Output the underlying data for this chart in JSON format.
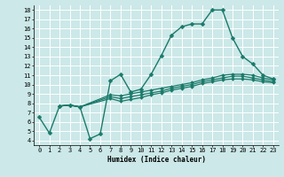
{
  "xlabel": "Humidex (Indice chaleur)",
  "bg_color": "#cce8e8",
  "grid_color": "#ffffff",
  "line_color": "#1a7a6a",
  "xlim": [
    -0.5,
    23.5
  ],
  "ylim": [
    3.5,
    18.5
  ],
  "xticks": [
    0,
    1,
    2,
    3,
    4,
    5,
    6,
    7,
    8,
    9,
    10,
    11,
    12,
    13,
    14,
    15,
    16,
    17,
    18,
    19,
    20,
    21,
    22,
    23
  ],
  "yticks": [
    4,
    5,
    6,
    7,
    8,
    9,
    10,
    11,
    12,
    13,
    14,
    15,
    16,
    17,
    18
  ],
  "series": [
    {
      "x": [
        0,
        1,
        2,
        3,
        4,
        5,
        6,
        7,
        8,
        9,
        10,
        11,
        12,
        13,
        14,
        15,
        16,
        17,
        18,
        19,
        20,
        21,
        22,
        23
      ],
      "y": [
        6.5,
        4.8,
        7.7,
        7.8,
        7.6,
        4.2,
        4.7,
        10.4,
        11.1,
        9.2,
        9.5,
        11.1,
        13.1,
        15.3,
        16.2,
        16.5,
        16.5,
        18.0,
        18.0,
        15.0,
        13.0,
        12.2,
        11.0,
        10.6
      ],
      "marker": "D",
      "markersize": 2.5,
      "linewidth": 1.0
    },
    {
      "x": [
        2,
        3,
        4,
        7,
        8,
        9,
        10,
        11,
        12,
        13,
        14,
        15,
        16,
        17,
        18,
        19,
        20,
        21,
        22,
        23
      ],
      "y": [
        7.7,
        7.8,
        7.6,
        8.9,
        8.8,
        9.0,
        9.2,
        9.4,
        9.6,
        9.8,
        10.0,
        10.2,
        10.5,
        10.7,
        11.0,
        11.1,
        11.1,
        11.0,
        10.7,
        10.5
      ],
      "marker": "D",
      "markersize": 2.0,
      "linewidth": 0.9
    },
    {
      "x": [
        2,
        3,
        4,
        7,
        8,
        9,
        10,
        11,
        12,
        13,
        14,
        15,
        16,
        17,
        18,
        19,
        20,
        21,
        22,
        23
      ],
      "y": [
        7.7,
        7.8,
        7.6,
        8.7,
        8.5,
        8.7,
        8.9,
        9.1,
        9.3,
        9.6,
        9.8,
        10.0,
        10.3,
        10.5,
        10.7,
        10.9,
        10.9,
        10.7,
        10.5,
        10.3
      ],
      "marker": "D",
      "markersize": 2.0,
      "linewidth": 0.9
    },
    {
      "x": [
        2,
        3,
        4,
        7,
        8,
        9,
        10,
        11,
        12,
        13,
        14,
        15,
        16,
        17,
        18,
        19,
        20,
        21,
        22,
        23
      ],
      "y": [
        7.7,
        7.8,
        7.6,
        8.5,
        8.2,
        8.4,
        8.6,
        8.9,
        9.1,
        9.4,
        9.6,
        9.8,
        10.1,
        10.3,
        10.5,
        10.6,
        10.6,
        10.5,
        10.3,
        10.2
      ],
      "marker": "D",
      "markersize": 2.0,
      "linewidth": 0.9
    }
  ]
}
